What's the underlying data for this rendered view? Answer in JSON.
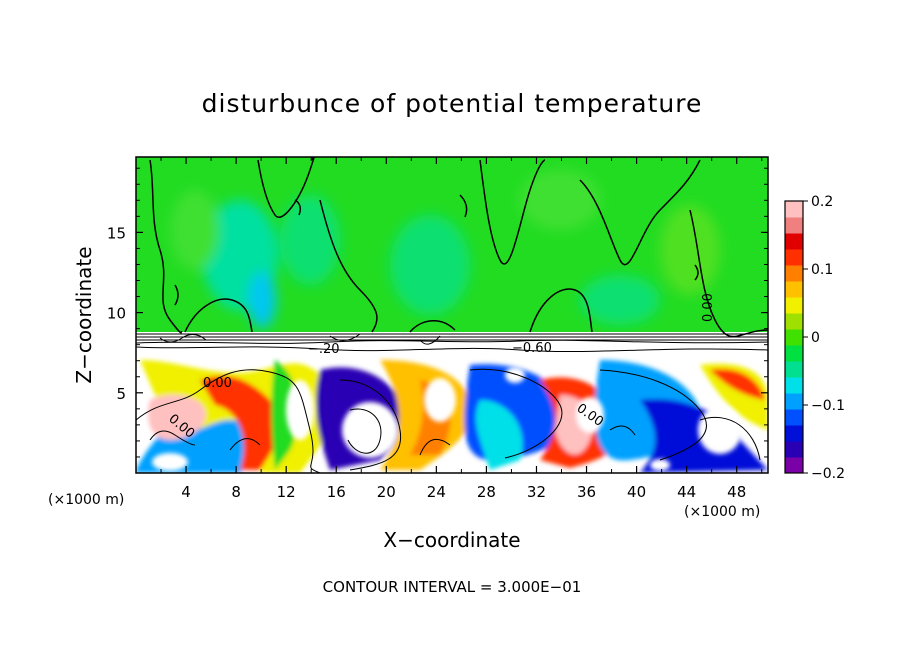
{
  "chart_data": {
    "type": "heatmap",
    "title": "disturbunce of potential temperature",
    "xlabel": "X−coordinate",
    "ylabel": "Z−coordinate",
    "x_unit_left": "(×1000 m)",
    "x_unit_right": "(×1000 m)",
    "footer": "CONTOUR INTERVAL = 3.000E−01",
    "xlim": [
      0,
      50.5
    ],
    "ylim": [
      0,
      19.7
    ],
    "x_ticks": [
      "4",
      "8",
      "12",
      "16",
      "20",
      "24",
      "28",
      "32",
      "36",
      "40",
      "44",
      "48"
    ],
    "x_tick_values": [
      4,
      8,
      12,
      16,
      20,
      24,
      28,
      32,
      36,
      40,
      44,
      48
    ],
    "y_ticks": [
      "5",
      "10",
      "15"
    ],
    "y_tick_values": [
      5,
      10,
      15
    ],
    "contour_labels": [
      {
        "text": "0.00",
        "x": 7,
        "z": 5.8
      },
      {
        "text": "0.00",
        "x": 3.5,
        "z": 3.8
      },
      {
        "text": "0.00",
        "x": 36.3,
        "z": 3.9
      },
      {
        "text": "−0.60",
        "x": 32.5,
        "z": 7.8
      },
      {
        "text": "−.20",
        "x": 14.8,
        "z": 7.7
      },
      {
        "text": "0.00",
        "x": 46.3,
        "z": 10.6
      }
    ],
    "colorbar": {
      "ticks": [
        "0.2",
        "0.1",
        "0",
        "−0.1",
        "−0.2"
      ],
      "tick_values": [
        0.2,
        0.1,
        0,
        -0.1,
        -0.2
      ],
      "range": [
        -0.2,
        0.2
      ],
      "colors": [
        "#7a00a8",
        "#2a00b4",
        "#0010d8",
        "#0050ff",
        "#00a0ff",
        "#00e0e8",
        "#00e090",
        "#00e040",
        "#40e000",
        "#a0e000",
        "#f0f000",
        "#ffc000",
        "#ff8000",
        "#ff3000",
        "#e00000",
        "#f08080",
        "#ffc0c0"
      ]
    },
    "colors": {
      "upper_field": "#22dc22",
      "lower_field": "#ffffff"
    }
  }
}
